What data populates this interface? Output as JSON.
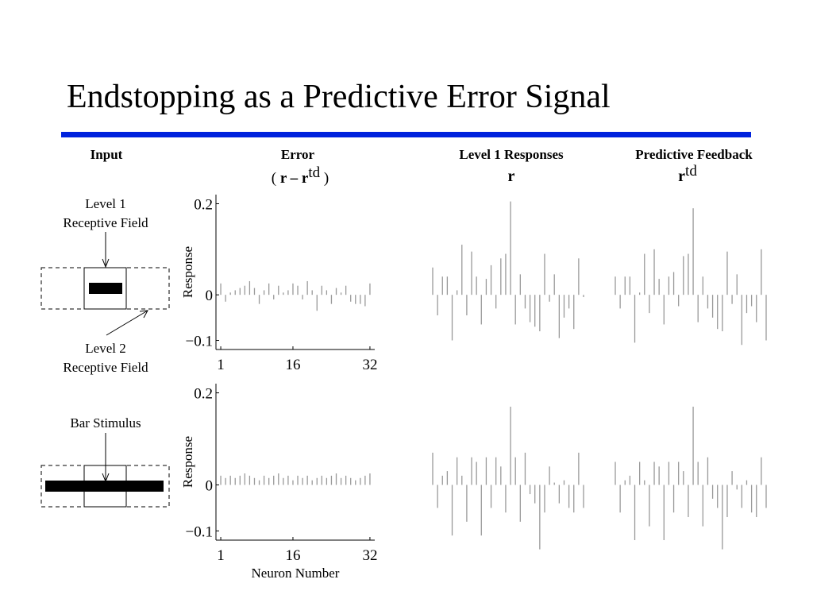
{
  "title": "Endstopping as a Predictive Error Signal",
  "headers": {
    "input": "Input",
    "error": "Error",
    "error_formula": {
      "prefix": "(",
      "base": "r – r",
      "sup": "td",
      "suffix": ")"
    },
    "level1": "Level 1 Responses",
    "level1_symbol": "r",
    "feedback": "Predictive Feedback",
    "feedback_symbol": {
      "base": "r",
      "sup": "td"
    }
  },
  "diagram": {
    "level1_field": [
      "Level 1",
      "Receptive Field"
    ],
    "level2_field": [
      "Level 2",
      "Receptive Field"
    ],
    "bar_stimulus": "Bar Stimulus"
  },
  "chart_data": [
    {
      "type": "stem",
      "color": "#999999",
      "x": [
        1,
        2,
        3,
        4,
        5,
        6,
        7,
        8,
        9,
        10,
        11,
        12,
        13,
        14,
        15,
        16,
        17,
        18,
        19,
        20,
        21,
        22,
        23,
        24,
        25,
        26,
        27,
        28,
        29,
        30,
        31,
        32
      ],
      "values": [
        0.025,
        -0.015,
        0.005,
        0.01,
        0.015,
        0.02,
        0.03,
        0.015,
        -0.02,
        0.01,
        0.025,
        -0.01,
        0.02,
        0.005,
        0.01,
        0.025,
        0.02,
        -0.01,
        0.03,
        0.01,
        -0.035,
        0.02,
        0.01,
        -0.02,
        0.015,
        0.005,
        0.02,
        -0.015,
        -0.02,
        -0.02,
        -0.025,
        0.025
      ],
      "xlim": [
        0,
        33
      ],
      "ylim": [
        -0.12,
        0.22
      ],
      "xticks": [
        1,
        16,
        32
      ],
      "yticks": [
        {
          "value": -0.1,
          "label": "−0.1"
        },
        0,
        0.2
      ],
      "ylabel": "Response"
    },
    {
      "type": "stem",
      "color": "#999999",
      "x": [
        1,
        2,
        3,
        4,
        5,
        6,
        7,
        8,
        9,
        10,
        11,
        12,
        13,
        14,
        15,
        16,
        17,
        18,
        19,
        20,
        21,
        22,
        23,
        24,
        25,
        26,
        27,
        28,
        29,
        30,
        31,
        32
      ],
      "values": [
        0.02,
        0.015,
        0.02,
        0.015,
        0.02,
        0.025,
        0.02,
        0.015,
        0.01,
        0.02,
        0.015,
        0.02,
        0.025,
        0.015,
        0.02,
        0.01,
        0.02,
        0.015,
        0.02,
        0.01,
        0.015,
        0.02,
        0.015,
        0.02,
        0.025,
        0.015,
        0.02,
        0.015,
        0.01,
        0.015,
        0.02,
        0.025
      ],
      "xlim": [
        0,
        33
      ],
      "ylim": [
        -0.12,
        0.22
      ],
      "xticks": [
        1,
        16,
        32
      ],
      "yticks": [
        {
          "value": -0.1,
          "label": "−0.1"
        },
        0,
        0.2
      ],
      "ylabel": "Response",
      "xlabel": "Neuron Number"
    },
    {
      "type": "stem",
      "color": "#999999",
      "x": [
        1,
        2,
        3,
        4,
        5,
        6,
        7,
        8,
        9,
        10,
        11,
        12,
        13,
        14,
        15,
        16,
        17,
        18,
        19,
        20,
        21,
        22,
        23,
        24,
        25,
        26,
        27,
        28,
        29,
        30,
        31,
        32
      ],
      "values": [
        0.06,
        -0.045,
        0.04,
        0.04,
        -0.1,
        0.01,
        0.11,
        -0.045,
        0.095,
        0.04,
        -0.065,
        0.035,
        0.065,
        -0.03,
        0.08,
        0.09,
        0.205,
        -0.065,
        0.045,
        -0.03,
        -0.06,
        -0.07,
        -0.08,
        0.09,
        -0.015,
        0.045,
        -0.095,
        -0.05,
        -0.03,
        -0.075,
        0.08,
        -0.005
      ],
      "xlim": [
        1,
        32
      ],
      "ylim": [
        -0.12,
        0.22
      ]
    },
    {
      "type": "stem",
      "color": "#999999",
      "x": [
        1,
        2,
        3,
        4,
        5,
        6,
        7,
        8,
        9,
        10,
        11,
        12,
        13,
        14,
        15,
        16,
        17,
        18,
        19,
        20,
        21,
        22,
        23,
        24,
        25,
        26,
        27,
        28,
        29,
        30,
        31,
        32
      ],
      "values": [
        0.07,
        -0.05,
        0.02,
        0.03,
        -0.11,
        0.06,
        0.02,
        -0.08,
        0.06,
        0.05,
        -0.11,
        0.06,
        -0.05,
        0.06,
        0.04,
        -0.06,
        0.17,
        0.06,
        -0.08,
        0.07,
        -0.02,
        -0.04,
        -0.14,
        -0.06,
        0.04,
        0.005,
        -0.04,
        0.01,
        -0.05,
        -0.06,
        0.07,
        -0.05
      ],
      "xlim": [
        1,
        32
      ],
      "ylim": [
        -0.12,
        0.22
      ]
    },
    {
      "type": "stem",
      "color": "#999999",
      "x": [
        1,
        2,
        3,
        4,
        5,
        6,
        7,
        8,
        9,
        10,
        11,
        12,
        13,
        14,
        15,
        16,
        17,
        18,
        19,
        20,
        21,
        22,
        23,
        24,
        25,
        26,
        27,
        28,
        29,
        30,
        31,
        32
      ],
      "values": [
        0.04,
        -0.03,
        0.04,
        0.04,
        -0.105,
        0.005,
        0.09,
        -0.04,
        0.1,
        0.035,
        -0.065,
        0.04,
        0.05,
        -0.025,
        0.085,
        0.09,
        0.19,
        -0.06,
        0.04,
        -0.03,
        -0.05,
        -0.075,
        -0.08,
        0.095,
        -0.02,
        0.045,
        -0.11,
        -0.04,
        -0.025,
        -0.06,
        0.1,
        -0.1
      ],
      "xlim": [
        1,
        32
      ],
      "ylim": [
        -0.12,
        0.22
      ]
    },
    {
      "type": "stem",
      "color": "#999999",
      "x": [
        1,
        2,
        3,
        4,
        5,
        6,
        7,
        8,
        9,
        10,
        11,
        12,
        13,
        14,
        15,
        16,
        17,
        18,
        19,
        20,
        21,
        22,
        23,
        24,
        25,
        26,
        27,
        28,
        29,
        30,
        31,
        32
      ],
      "values": [
        0.05,
        -0.06,
        0.01,
        0.02,
        -0.12,
        0.05,
        0.01,
        -0.09,
        0.05,
        0.04,
        -0.12,
        0.05,
        -0.06,
        0.05,
        0.03,
        -0.07,
        0.17,
        0.05,
        -0.09,
        0.06,
        -0.03,
        -0.05,
        -0.14,
        -0.07,
        0.03,
        -0.01,
        -0.05,
        0.01,
        -0.06,
        -0.07,
        0.06,
        -0.05
      ],
      "xlim": [
        1,
        32
      ],
      "ylim": [
        -0.12,
        0.22
      ]
    }
  ]
}
